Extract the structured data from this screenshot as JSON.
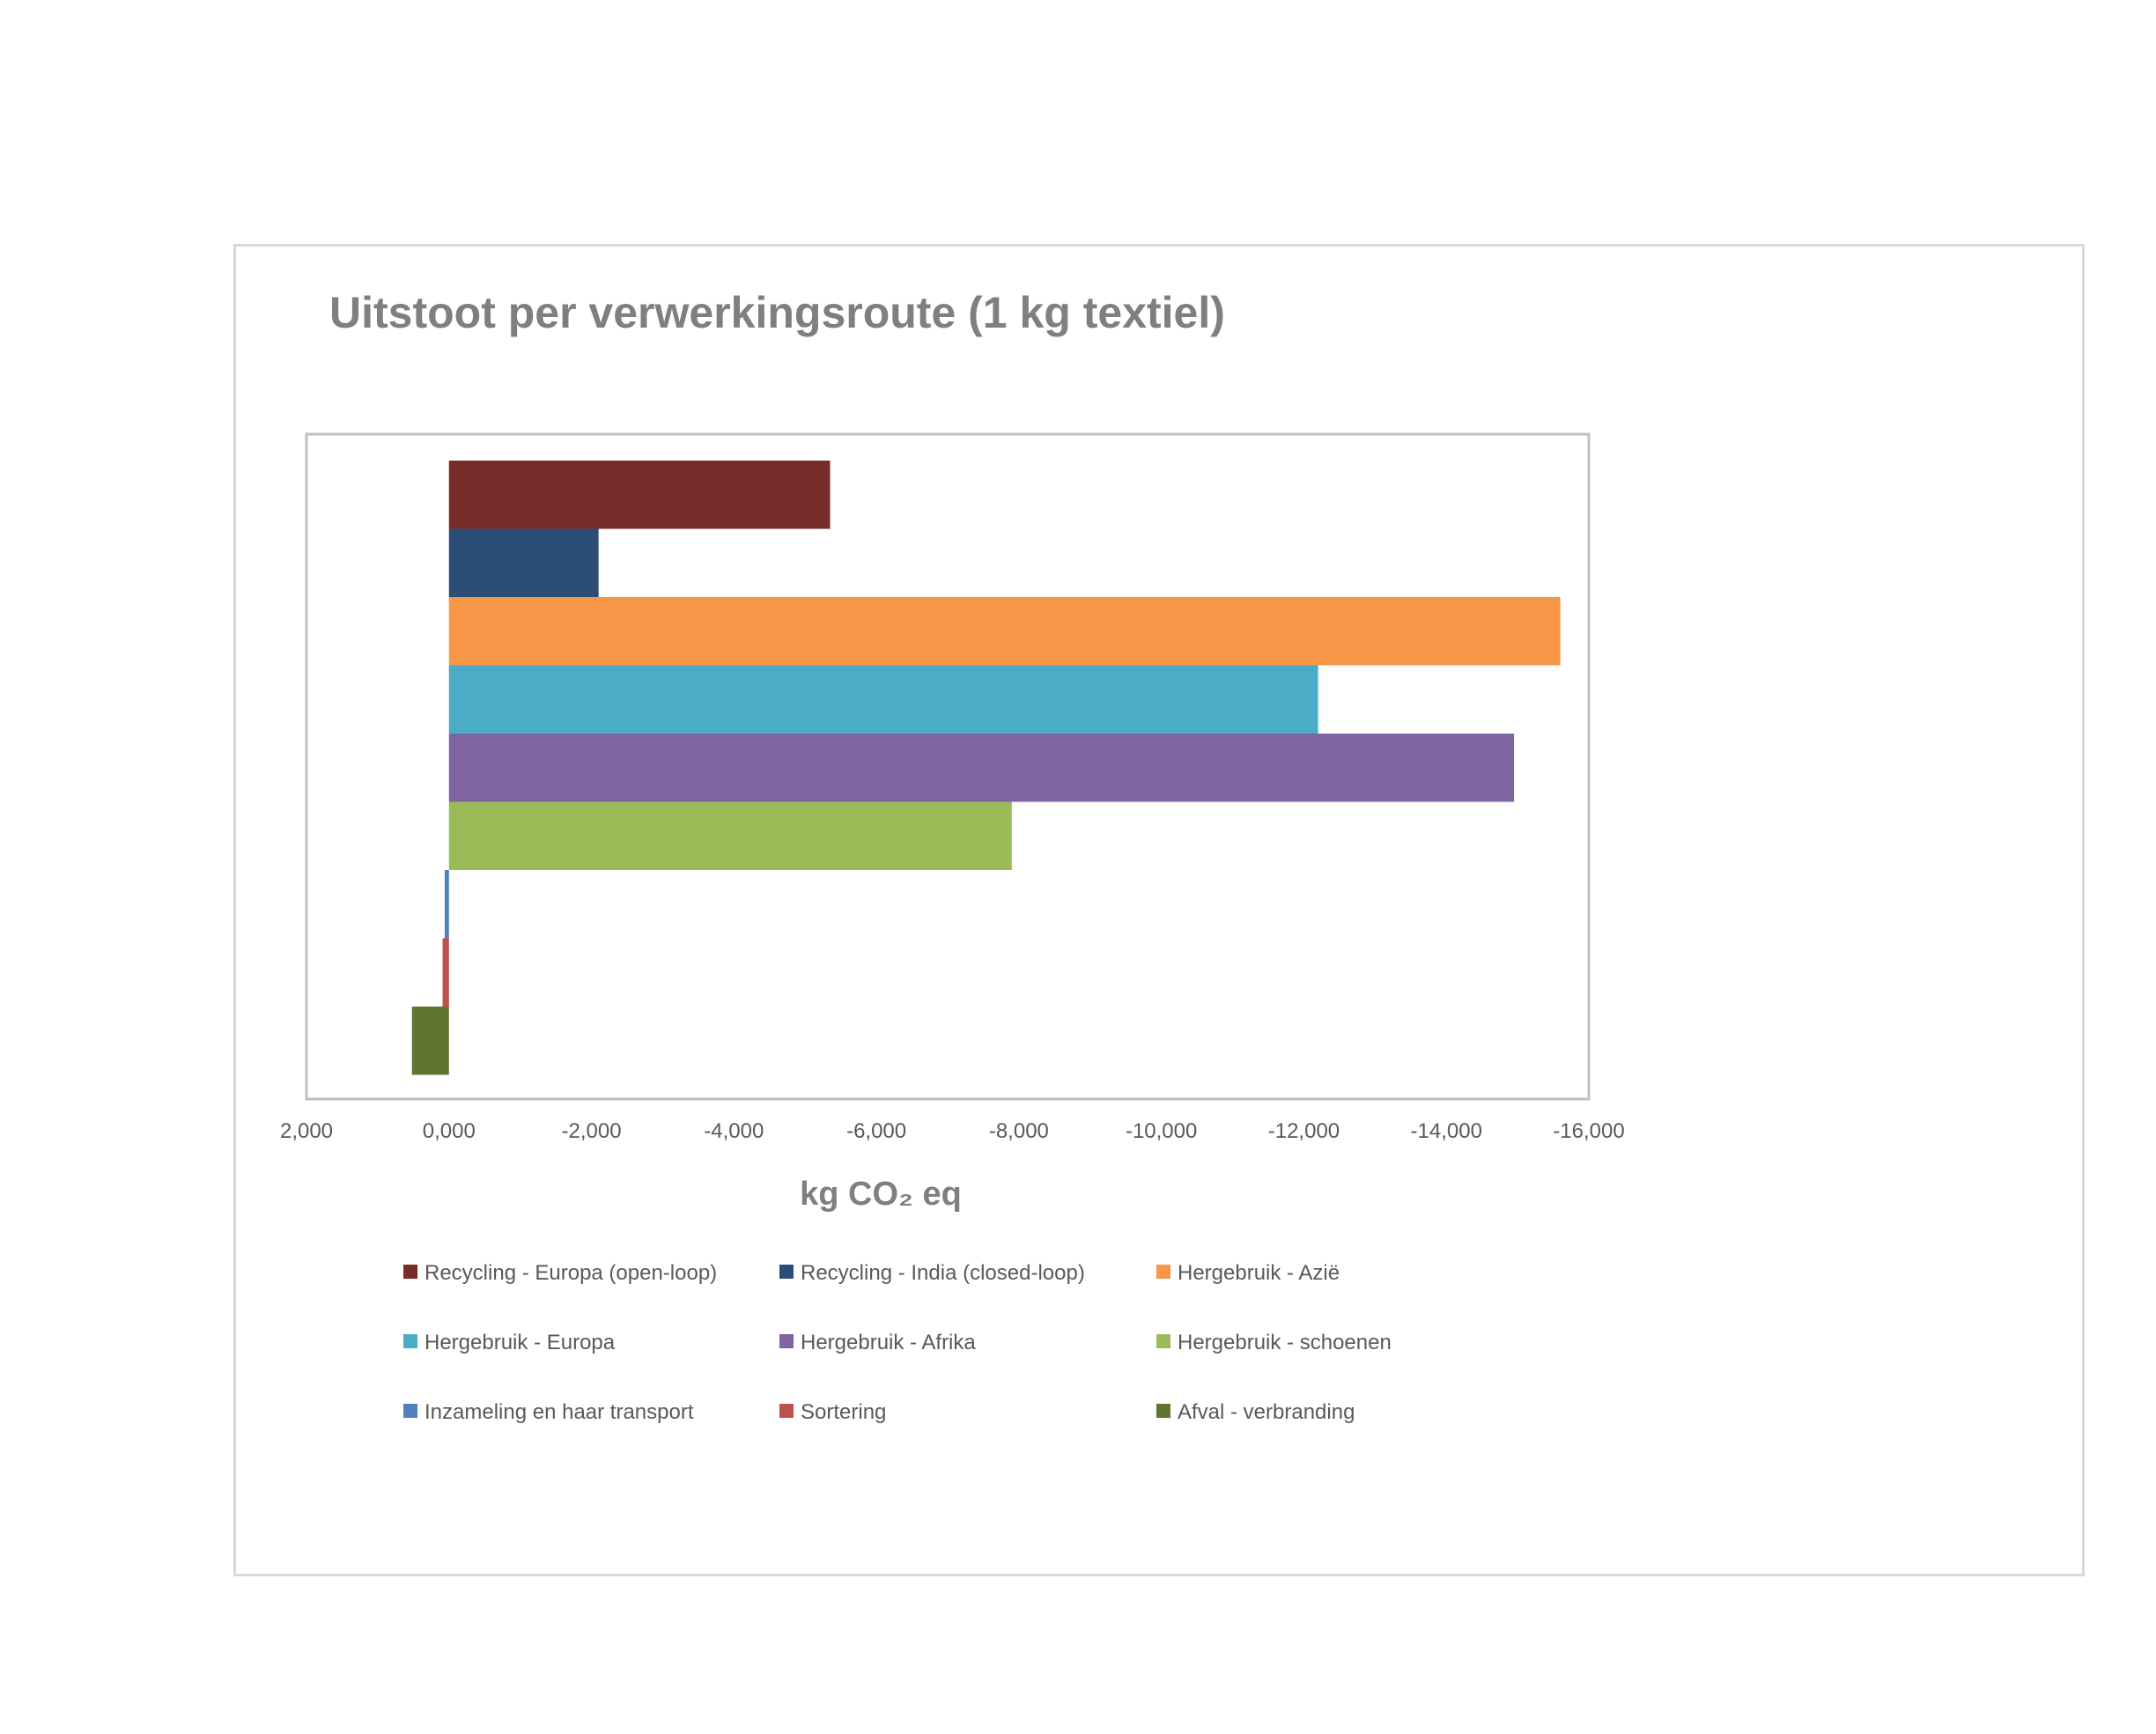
{
  "chart_data": {
    "type": "bar",
    "orientation": "horizontal",
    "title": "Uitstoot per verwerkingsroute (1 kg textiel)",
    "xlabel": "kg CO₂ eq",
    "xlim": [
      2,
      -16
    ],
    "x_reversed": true,
    "x_ticks": [
      "2,000",
      "0,000",
      "-2,000",
      "-4,000",
      "-6,000",
      "-8,000",
      "-10,000",
      "-12,000",
      "-14,000",
      "-16,000"
    ],
    "x_tick_values": [
      2,
      0,
      -2,
      -4,
      -6,
      -8,
      -10,
      -12,
      -14,
      -16
    ],
    "grid": false,
    "legend_position": "bottom",
    "series": [
      {
        "name": "Recycling - Europa (open-loop)",
        "value": -5.35,
        "color": "#772C2A"
      },
      {
        "name": "Recycling - India (closed-loop)",
        "value": -2.1,
        "color": "#2C4D75"
      },
      {
        "name": "Hergebruik - Azië",
        "value": -15.6,
        "color": "#F79646"
      },
      {
        "name": "Hergebruik - Europa",
        "value": -12.2,
        "color": "#4BACC6"
      },
      {
        "name": "Hergebruik - Afrika",
        "value": -14.95,
        "color": "#8064A2"
      },
      {
        "name": "Hergebruik - schoenen",
        "value": -7.9,
        "color": "#9BBB59"
      },
      {
        "name": "Inzameling en haar transport",
        "value": 0.06,
        "color": "#4F81BD"
      },
      {
        "name": "Sortering",
        "value": 0.09,
        "color": "#C0504D"
      },
      {
        "name": "Afval - verbranding",
        "value": 0.52,
        "color": "#5F7530"
      }
    ]
  }
}
